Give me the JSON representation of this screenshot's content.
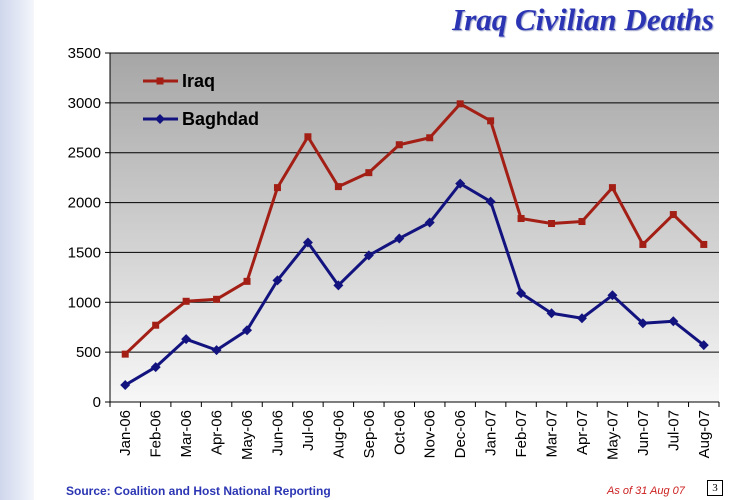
{
  "title": "Iraq Civilian Deaths",
  "source": "Source: Coalition and Host National Reporting",
  "as_of": "As of 31 Aug 07",
  "page_number": "3",
  "colors": {
    "iraq": "#a31f15",
    "baghdad": "#13137f",
    "title": "#2b35b3",
    "as_of": "#cc1f1f"
  },
  "chart_data": {
    "type": "line",
    "title": "Iraq Civilian Deaths",
    "xlabel": "",
    "ylabel": "",
    "ylim": [
      0,
      3500
    ],
    "yticks": [
      0,
      500,
      1000,
      1500,
      2000,
      2500,
      3000,
      3500
    ],
    "grid": true,
    "legend_position": "top-left",
    "categories": [
      "Jan-06",
      "Feb-06",
      "Mar-06",
      "Apr-06",
      "May-06",
      "Jun-06",
      "Jul-06",
      "Aug-06",
      "Sep-06",
      "Oct-06",
      "Nov-06",
      "Dec-06",
      "Jan-07",
      "Feb-07",
      "Mar-07",
      "Apr-07",
      "May-07",
      "Jun-07",
      "Jul-07",
      "Aug-07"
    ],
    "series": [
      {
        "name": "Iraq",
        "marker": "square",
        "values": [
          480,
          770,
          1010,
          1030,
          1210,
          2150,
          2660,
          2160,
          2300,
          2580,
          2650,
          2990,
          2820,
          1840,
          1790,
          1810,
          2150,
          1580,
          1880,
          1580
        ]
      },
      {
        "name": "Baghdad",
        "marker": "diamond",
        "values": [
          170,
          350,
          630,
          520,
          720,
          1220,
          1600,
          1170,
          1470,
          1640,
          1800,
          2190,
          2010,
          1090,
          890,
          840,
          1070,
          790,
          810,
          570
        ]
      }
    ]
  }
}
